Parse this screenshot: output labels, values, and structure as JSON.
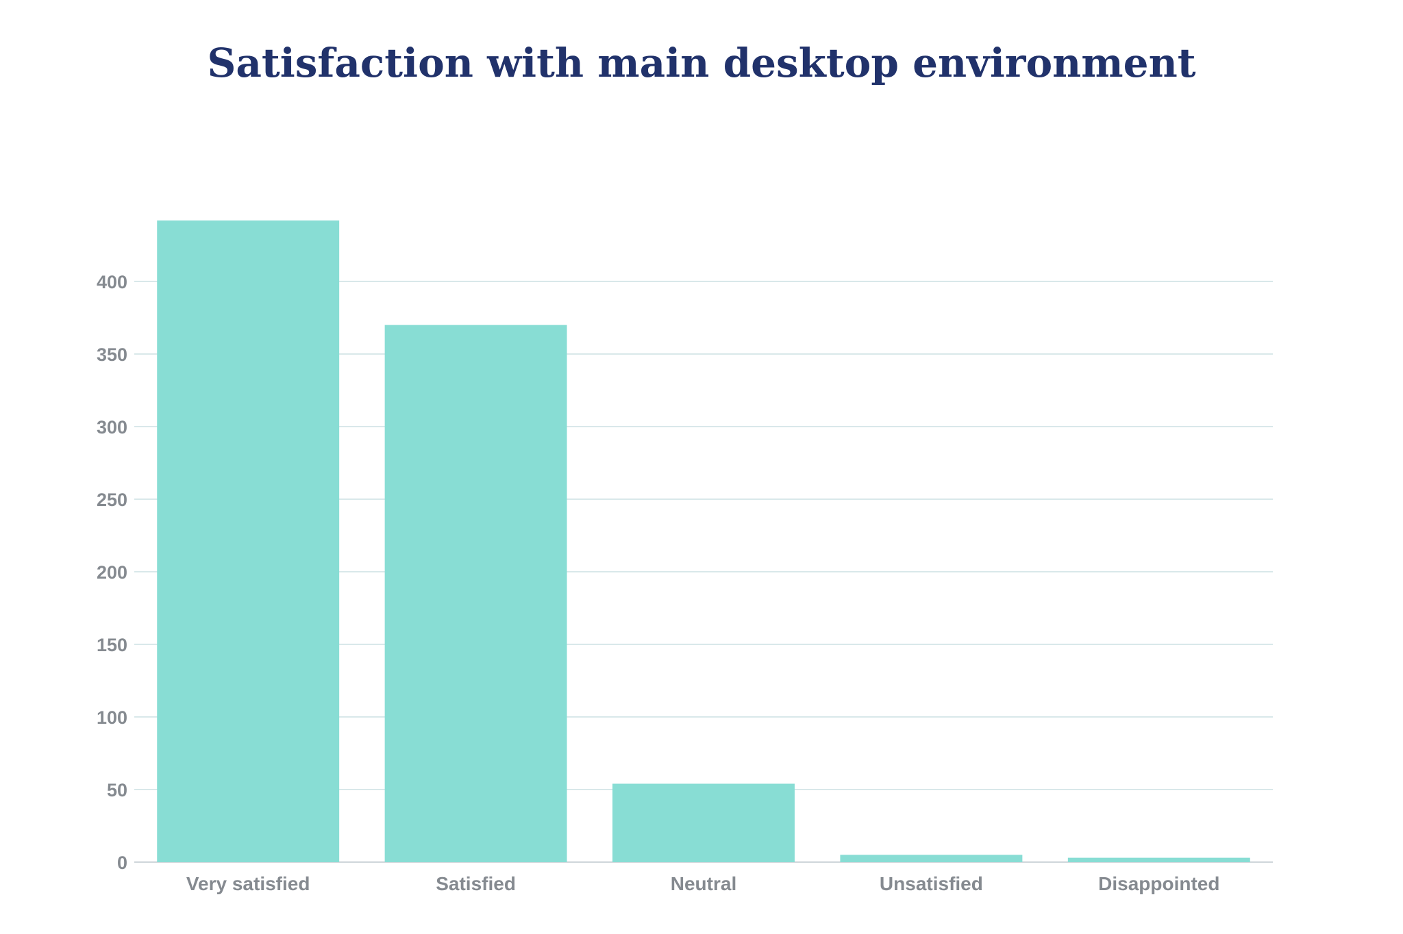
{
  "chart_data": {
    "type": "bar",
    "title": "Satisfaction with main desktop environment",
    "xlabel": "",
    "ylabel": "",
    "categories": [
      "Very satisfied",
      "Satisfied",
      "Neutral",
      "Unsatisfied",
      "Disappointed"
    ],
    "values": [
      442,
      370,
      54,
      5,
      3
    ],
    "ylim": [
      0,
      442
    ],
    "yticks": [
      0,
      50,
      100,
      150,
      200,
      250,
      300,
      350,
      400
    ],
    "grid": true,
    "legend": "none",
    "colors": {
      "bar": "#88ddd4",
      "grid": "#d9e8ea",
      "axis": "#cfd6da",
      "tick_text": "#858a90",
      "title": "#21326b"
    }
  }
}
